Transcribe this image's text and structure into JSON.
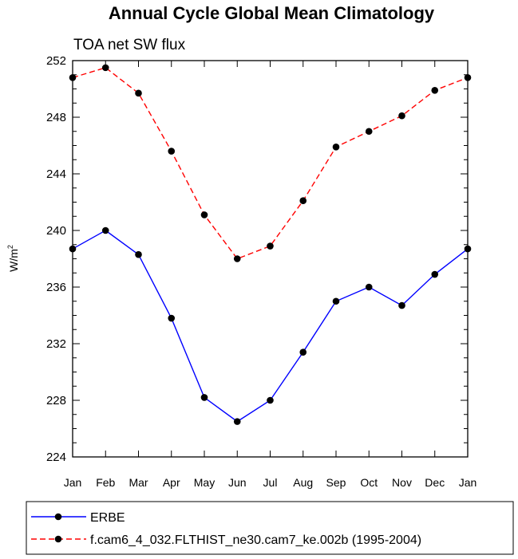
{
  "chart_data": {
    "type": "line",
    "title": "Annual Cycle Global Mean Climatology",
    "subtitle": "TOA net SW flux",
    "ylabel": "W/m",
    "ylabel_superscript": "2",
    "xlabel": "",
    "categories": [
      "Jan",
      "Feb",
      "Mar",
      "Apr",
      "May",
      "Jun",
      "Jul",
      "Aug",
      "Sep",
      "Oct",
      "Nov",
      "Dec",
      "Jan"
    ],
    "ylim": [
      224,
      252
    ],
    "yticks": [
      224,
      228,
      232,
      236,
      240,
      244,
      248,
      252
    ],
    "y_minor_step": 1,
    "grid": false,
    "legend_position": "bottom",
    "series": [
      {
        "name": "ERBE",
        "color": "#0000ff",
        "dash": "solid",
        "marker": "circle",
        "values": [
          238.7,
          240.0,
          238.3,
          233.8,
          228.2,
          226.5,
          228.0,
          231.4,
          235.0,
          236.0,
          234.7,
          236.9,
          238.7
        ]
      },
      {
        "name": "f.cam6_4_032.FLTHIST_ne30.cam7_ke.002b (1995-2004)",
        "color": "#ff0000",
        "dash": "dashed",
        "marker": "circle",
        "values": [
          250.8,
          251.5,
          249.7,
          245.6,
          241.1,
          238.0,
          238.9,
          242.1,
          245.9,
          247.0,
          248.1,
          249.9,
          250.8
        ]
      }
    ]
  }
}
